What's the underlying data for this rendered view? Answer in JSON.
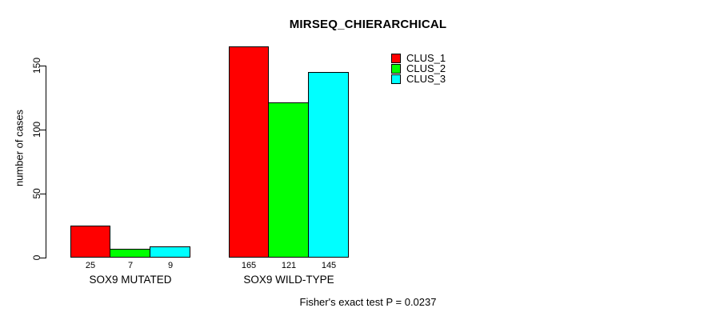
{
  "chart_data": {
    "type": "bar",
    "title": "MIRSEQ_CHIERARCHICAL",
    "ylabel": "number of cases",
    "xlabel": "",
    "categories": [
      "SOX9 MUTATED",
      "SOX9 WILD-TYPE"
    ],
    "series": [
      {
        "name": "CLUS_1",
        "color": "#ff0000",
        "values": [
          25,
          165
        ]
      },
      {
        "name": "CLUS_2",
        "color": "#00ff00",
        "values": [
          7,
          121
        ]
      },
      {
        "name": "CLUS_3",
        "color": "#00ffff",
        "values": [
          9,
          145
        ]
      }
    ],
    "bar_value_labels": [
      [
        "25",
        "7",
        "9"
      ],
      [
        "165",
        "121",
        "145"
      ]
    ],
    "yticks": [
      0,
      50,
      100,
      150
    ],
    "ylim": [
      0,
      165
    ],
    "grid": false,
    "legend_position": "top-right",
    "annotation": "Fisher's exact test P = 0.0237"
  }
}
